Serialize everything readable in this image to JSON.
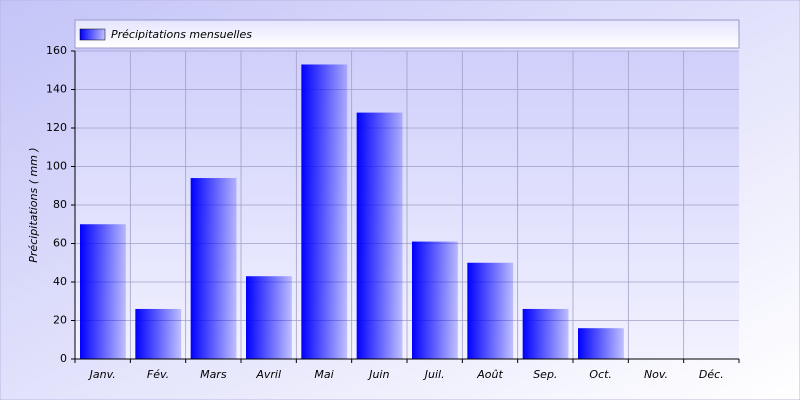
{
  "chart_data": {
    "type": "bar",
    "legend": "Précipitations mensuelles",
    "y_label": "Précipitations ( mm )",
    "categories": [
      "Janv.",
      "Fév.",
      "Mars",
      "Avril",
      "Mai",
      "Juin",
      "Juil.",
      "Août",
      "Sep.",
      "Oct.",
      "Nov.",
      "Déc."
    ],
    "values": [
      70,
      26,
      94,
      43,
      153,
      128,
      61,
      50,
      26,
      16,
      0,
      0
    ],
    "color": "#0000ff",
    "ylim": [
      0,
      160
    ],
    "yticks": [
      0,
      20,
      40,
      60,
      80,
      100,
      120,
      140,
      160
    ],
    "grid": true
  }
}
